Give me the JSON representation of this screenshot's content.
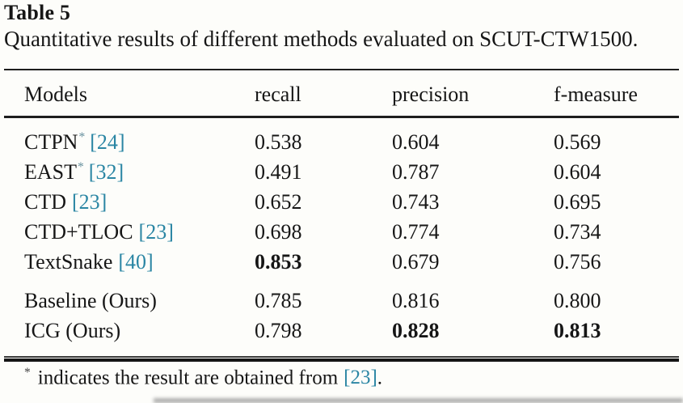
{
  "table": {
    "label": "Table 5",
    "caption": "Quantitative results of different methods evaluated on SCUT-CTW1500."
  },
  "columns": {
    "models": "Models",
    "recall": "recall",
    "precision": "precision",
    "fmeasure": "f-measure"
  },
  "rows": [
    {
      "model": "CTPN",
      "sup": "*",
      "cite": "[24]",
      "recall": "0.538",
      "precision": "0.604",
      "fmeasure": "0.569"
    },
    {
      "model": "EAST",
      "sup": "*",
      "cite": "[32]",
      "recall": "0.491",
      "precision": "0.787",
      "fmeasure": "0.604"
    },
    {
      "model": "CTD",
      "sup": "",
      "cite": "[23]",
      "recall": "0.652",
      "precision": "0.743",
      "fmeasure": "0.695"
    },
    {
      "model": "CTD+TLOC",
      "sup": "",
      "cite": "[23]",
      "recall": "0.698",
      "precision": "0.774",
      "fmeasure": "0.734"
    },
    {
      "model": "TextSnake",
      "sup": "",
      "cite": "[40]",
      "recall": "0.853",
      "precision": "0.679",
      "fmeasure": "0.756"
    },
    {
      "model": "Baseline (Ours)",
      "sup": "",
      "cite": "",
      "recall": "0.785",
      "precision": "0.816",
      "fmeasure": "0.800"
    },
    {
      "model": "ICG (Ours)",
      "sup": "",
      "cite": "",
      "recall": "0.798",
      "precision": "0.828",
      "fmeasure": "0.813"
    }
  ],
  "footnote": {
    "marker": "*",
    "text": "indicates the result are obtained from",
    "cite": "[23]",
    "period": "."
  },
  "colors": {
    "citation": "#2b86a4",
    "text": "#161616",
    "rule": "#1e1e1e",
    "background": "#fdfdfa"
  }
}
